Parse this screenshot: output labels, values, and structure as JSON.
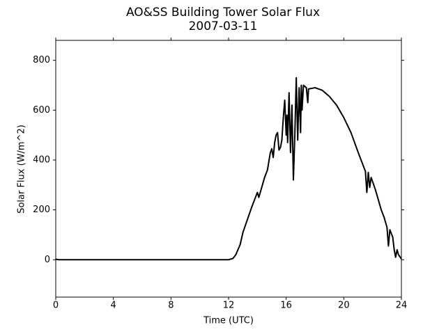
{
  "chart_data": {
    "type": "line",
    "title": "AO&SS Building Tower Solar Flux",
    "subtitle": "2007-03-11",
    "x_label": "Time (UTC)",
    "y_label": "Solar Flux (W/m^2)",
    "xlim": [
      0,
      24
    ],
    "xticks": [
      0,
      4,
      8,
      12,
      16,
      20,
      24
    ],
    "ylim": [
      -150,
      880
    ],
    "yticks": [
      0,
      200,
      400,
      600,
      800
    ],
    "series": [
      {
        "name": "Solar Flux",
        "color": "#000000",
        "x": [
          0,
          0.2,
          12,
          12.3,
          12.5,
          12.8,
          13,
          13.3,
          13.6,
          13.8,
          14,
          14.1,
          14.3,
          14.5,
          14.7,
          14.9,
          15.0,
          15.1,
          15.2,
          15.3,
          15.4,
          15.5,
          15.6,
          15.7,
          15.8,
          15.9,
          16.0,
          16.05,
          16.1,
          16.2,
          16.3,
          16.4,
          16.5,
          16.6,
          16.7,
          16.8,
          16.9,
          17.0,
          17.05,
          17.1,
          17.2,
          17.4,
          17.5,
          17.55,
          18,
          18.5,
          19,
          19.5,
          20,
          20.5,
          21,
          21.5,
          21.6,
          21.7,
          21.8,
          21.9,
          22.2,
          22.6,
          22.8,
          23.0,
          23.1,
          23.2,
          23.4,
          23.5,
          23.6,
          23.7,
          23.8,
          24
        ],
        "values": [
          2,
          0,
          0,
          5,
          20,
          60,
          110,
          160,
          210,
          240,
          270,
          250,
          290,
          330,
          360,
          430,
          445,
          410,
          470,
          500,
          510,
          440,
          450,
          480,
          570,
          640,
          500,
          580,
          470,
          670,
          430,
          620,
          320,
          500,
          730,
          480,
          690,
          510,
          700,
          600,
          700,
          690,
          630,
          685,
          690,
          680,
          655,
          620,
          570,
          510,
          430,
          355,
          270,
          350,
          290,
          330,
          280,
          200,
          170,
          130,
          55,
          120,
          90,
          40,
          10,
          40,
          20,
          3
        ]
      }
    ]
  }
}
